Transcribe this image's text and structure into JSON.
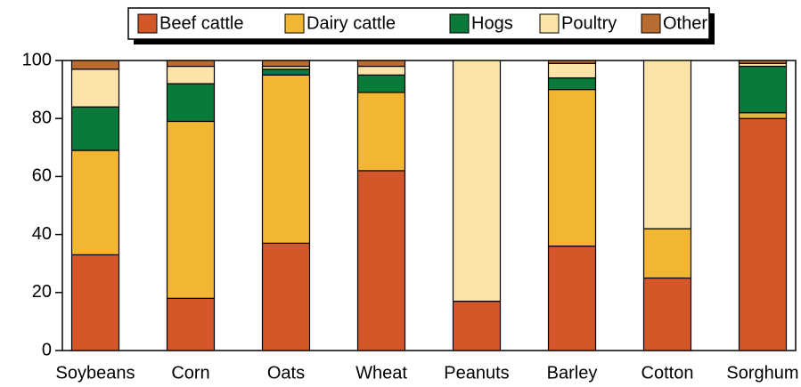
{
  "chart_data": {
    "type": "stacked_bar",
    "categories": [
      "Soybeans",
      "Corn",
      "Oats",
      "Wheat",
      "Peanuts",
      "Barley",
      "Cotton",
      "Sorghum"
    ],
    "series": [
      {
        "name": "Beef cattle",
        "color": "#d4572a",
        "values": [
          33,
          18,
          37,
          62,
          17,
          36,
          25,
          80
        ]
      },
      {
        "name": "Dairy cattle",
        "color": "#f2b632",
        "values": [
          36,
          61,
          58,
          27,
          0,
          54,
          17,
          2
        ]
      },
      {
        "name": "Hogs",
        "color": "#0a7a3a",
        "values": [
          15,
          13,
          2,
          6,
          0,
          4,
          0,
          16
        ]
      },
      {
        "name": "Poultry",
        "color": "#fce3a8",
        "values": [
          13,
          6,
          1,
          3,
          83,
          5,
          58,
          1
        ]
      },
      {
        "name": "Other",
        "color": "#b86c30",
        "values": [
          3,
          2,
          2,
          2,
          0,
          1,
          0,
          1
        ]
      }
    ],
    "ylim": [
      0,
      100
    ],
    "yticks": [
      0,
      20,
      40,
      60,
      80,
      100
    ],
    "legend": "top"
  }
}
